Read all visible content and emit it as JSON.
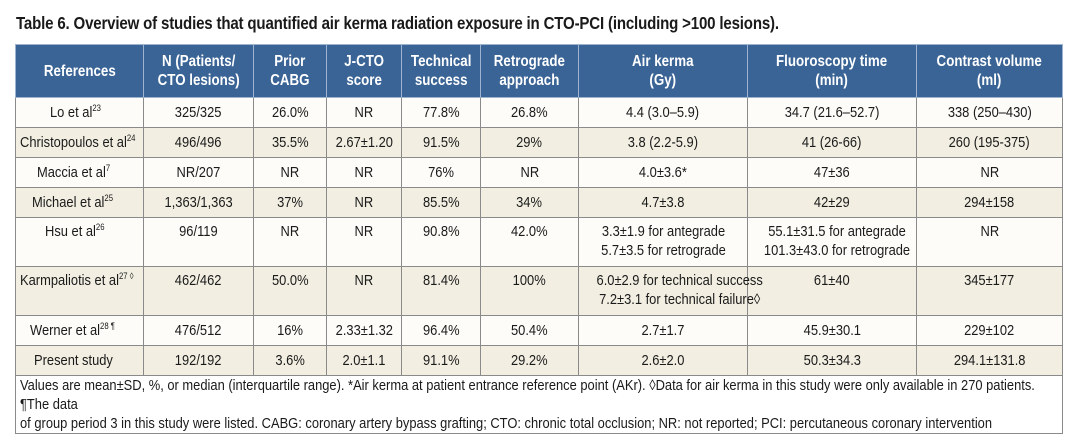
{
  "title": "Table 6. Overview of studies that quantified air kerma radiation exposure in CTO-PCI (including >100 lesions).",
  "header_color": "#3a6496",
  "columns": [
    {
      "l1": "References",
      "l2": ""
    },
    {
      "l1": "N (Patients/",
      "l2": "CTO lesions)"
    },
    {
      "l1": "Prior",
      "l2": "CABG"
    },
    {
      "l1": "J-CTO",
      "l2": "score"
    },
    {
      "l1": "Technical",
      "l2": "success"
    },
    {
      "l1": "Retrograde",
      "l2": "approach"
    },
    {
      "l1": "Air kerma",
      "l2": "(Gy)"
    },
    {
      "l1": "Fluoroscopy time",
      "l2": "(min)"
    },
    {
      "l1": "Contrast volume",
      "l2": "(ml)"
    }
  ],
  "rows": [
    {
      "ref": "Lo et al",
      "sup": "23",
      "n": "325/325",
      "cabg": "26.0%",
      "jcto": "NR",
      "success": "77.8%",
      "retro": "26.8%",
      "air": [
        "4.4 (3.0–5.9)"
      ],
      "fluoro": [
        "34.7 (21.6–52.7)"
      ],
      "contrast": "338 (250–430)"
    },
    {
      "ref": "Christopoulos et al",
      "sup": "24",
      "n": "496/496",
      "cabg": "35.5%",
      "jcto": "2.67±1.20",
      "success": "91.5%",
      "retro": "29%",
      "air": [
        "3.8 (2.2-5.9)"
      ],
      "fluoro": [
        "41 (26-66)"
      ],
      "contrast": "260 (195-375)"
    },
    {
      "ref": "Maccia et al",
      "sup": "7",
      "n": "NR/207",
      "cabg": "NR",
      "jcto": "NR",
      "success": "76%",
      "retro": "NR",
      "air": [
        "4.0±3.6*"
      ],
      "fluoro": [
        "47±36"
      ],
      "contrast": "NR"
    },
    {
      "ref": "Michael et al",
      "sup": "25",
      "n": "1,363/1,363",
      "cabg": "37%",
      "jcto": "NR",
      "success": "85.5%",
      "retro": "34%",
      "air": [
        "4.7±3.8"
      ],
      "fluoro": [
        "42±29"
      ],
      "contrast": "294±158"
    },
    {
      "ref": "Hsu et al",
      "sup": "26",
      "n": "96/119",
      "cabg": "NR",
      "jcto": "NR",
      "success": "90.8%",
      "retro": "42.0%",
      "air": [
        "3.3±1.9 for antegrade",
        "5.7±3.5 for retrograde"
      ],
      "fluoro": [
        "55.1±31.5 for antegrade",
        "101.3±43.0 for retrograde"
      ],
      "contrast": "NR"
    },
    {
      "ref": "Karmpaliotis et al",
      "sup": "27 ◊",
      "n": "462/462",
      "cabg": "50.0%",
      "jcto": "NR",
      "success": "81.4%",
      "retro": "100%",
      "air": [
        "6.0±2.9 for technical success",
        "7.2±3.1 for technical failure◊"
      ],
      "fluoro": [
        "61±40"
      ],
      "contrast": "345±177"
    },
    {
      "ref": "Werner et al",
      "sup": "28 ¶",
      "n": "476/512",
      "cabg": "16%",
      "jcto": "2.33±1.32",
      "success": "96.4%",
      "retro": "50.4%",
      "air": [
        "2.7±1.7"
      ],
      "fluoro": [
        "45.9±30.1"
      ],
      "contrast": "229±102"
    },
    {
      "ref": "Present study",
      "sup": "",
      "n": "192/192",
      "cabg": "3.6%",
      "jcto": "2.0±1.1",
      "success": "91.1%",
      "retro": "29.2%",
      "air": [
        "2.6±2.0"
      ],
      "fluoro": [
        "50.3±34.3"
      ],
      "contrast": "294.1±131.8"
    }
  ],
  "footnote": {
    "line1": "Values are mean±SD, %, or median (interquartile range). *Air kerma at patient entrance reference point (AKr). ◊Data for air kerma in this study were only available in 270 patients. ¶The data",
    "line2": "of group period 3 in this study were listed. CABG: coronary artery bypass grafting; CTO: chronic total occlusion; NR: not reported; PCI: percutaneous coronary intervention"
  }
}
